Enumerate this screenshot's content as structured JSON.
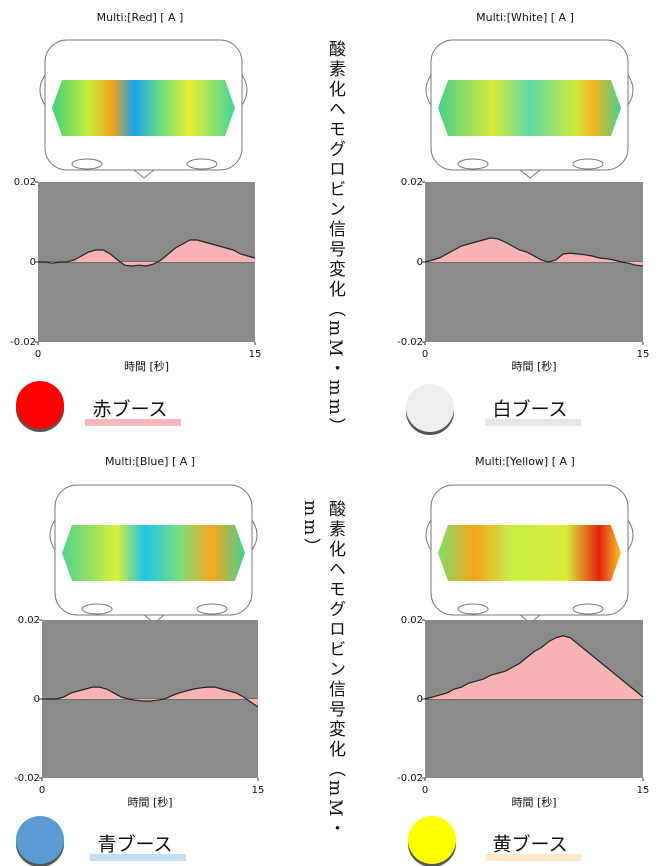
{
  "side_labels": [
    "酸素化ヘモグロビン信号変化（mM・mm）",
    "酸素化ヘモグロビン信号変化（mM・mm）"
  ],
  "chart_data": [
    {
      "type": "area",
      "title": "Multi:[Red] [ A ]",
      "xlabel": "時間 [秒]",
      "caption": "赤ブース",
      "marker_color": "#ff0000",
      "underline_color": "#f6b8bd",
      "color": "#f7b3b3",
      "line_color": "#222222",
      "xlim": [
        0,
        15
      ],
      "xticks": [
        0,
        15
      ],
      "ylim": [
        -0.02,
        0.02
      ],
      "yticks": [
        0.02,
        0,
        -0.02
      ],
      "x": [
        0,
        0.5,
        1,
        1.5,
        2,
        2.5,
        3,
        3.5,
        4,
        4.5,
        5,
        5.5,
        6,
        6.5,
        7,
        7.5,
        8,
        8.5,
        9,
        9.5,
        10,
        10.5,
        11,
        11.5,
        12,
        12.5,
        13,
        13.5,
        14,
        14.5,
        15
      ],
      "values": [
        0,
        0,
        -0.0003,
        0,
        0,
        0.0005,
        0.0015,
        0.0025,
        0.003,
        0.003,
        0.002,
        0.0005,
        -0.0008,
        -0.001,
        -0.0008,
        -0.001,
        -0.0005,
        0.0005,
        0.002,
        0.0035,
        0.0045,
        0.0055,
        0.0055,
        0.005,
        0.0045,
        0.004,
        0.0035,
        0.003,
        0.002,
        0.0015,
        0.001
      ]
    },
    {
      "type": "area",
      "title": "Multi:[White] [ A ]",
      "xlabel": "時間 [秒]",
      "caption": "白ブース",
      "marker_color": "#eeeeee",
      "underline_color": "#e6e6e6",
      "color": "#f7b3b3",
      "line_color": "#222222",
      "xlim": [
        0,
        15
      ],
      "xticks": [
        0,
        15
      ],
      "ylim": [
        -0.02,
        0.02
      ],
      "yticks": [
        0.02,
        0,
        -0.02
      ],
      "x": [
        0,
        0.5,
        1,
        1.5,
        2,
        2.5,
        3,
        3.5,
        4,
        4.5,
        5,
        5.5,
        6,
        6.5,
        7,
        7.5,
        8,
        8.5,
        9,
        9.5,
        10,
        10.5,
        11,
        11.5,
        12,
        12.5,
        13,
        13.5,
        14,
        14.5,
        15
      ],
      "values": [
        0,
        0.0005,
        0.001,
        0.002,
        0.003,
        0.004,
        0.0045,
        0.005,
        0.0055,
        0.006,
        0.0058,
        0.005,
        0.004,
        0.003,
        0.0025,
        0.0015,
        0.0005,
        0,
        0.0005,
        0.002,
        0.0022,
        0.002,
        0.0018,
        0.0015,
        0.001,
        0.0008,
        0.0005,
        0,
        -0.0003,
        -0.0008,
        -0.001
      ]
    },
    {
      "type": "area",
      "title": "Multi:[Blue] [ A ]",
      "xlabel": "時間 [秒]",
      "caption": "青ブース",
      "marker_color": "#5b9bd5",
      "underline_color": "#c5dcef",
      "color": "#f7b3b3",
      "line_color": "#222222",
      "xlim": [
        0,
        15
      ],
      "xticks": [
        0,
        15
      ],
      "ylim": [
        -0.02,
        0.02
      ],
      "yticks": [
        0.02,
        0,
        -0.02
      ],
      "x": [
        0,
        0.5,
        1,
        1.5,
        2,
        2.5,
        3,
        3.5,
        4,
        4.5,
        5,
        5.5,
        6,
        6.5,
        7,
        7.5,
        8,
        8.5,
        9,
        9.5,
        10,
        10.5,
        11,
        11.5,
        12,
        12.5,
        13,
        13.5,
        14,
        14.5,
        15
      ],
      "values": [
        0,
        0,
        0,
        0.0005,
        0.0015,
        0.002,
        0.0025,
        0.003,
        0.003,
        0.0025,
        0.0015,
        0.0005,
        0,
        -0.0003,
        -0.0005,
        -0.0005,
        -0.0003,
        0,
        0.0008,
        0.0015,
        0.002,
        0.0025,
        0.0028,
        0.003,
        0.003,
        0.0025,
        0.002,
        0.0015,
        0.0005,
        -0.0008,
        -0.002
      ]
    },
    {
      "type": "area",
      "title": "Multi:[Yellow] [ A ]",
      "xlabel": "時間 [秒]",
      "caption": "黄ブース",
      "marker_color": "#ffff00",
      "underline_color": "#fde9c8",
      "color": "#f7b3b3",
      "line_color": "#222222",
      "xlim": [
        0,
        15
      ],
      "xticks": [
        0,
        15
      ],
      "ylim": [
        -0.02,
        0.02
      ],
      "yticks": [
        0.02,
        0,
        -0.02
      ],
      "x": [
        0,
        0.5,
        1,
        1.5,
        2,
        2.5,
        3,
        3.5,
        4,
        4.5,
        5,
        5.5,
        6,
        6.5,
        7,
        7.5,
        8,
        8.5,
        9,
        9.5,
        10,
        10.5,
        11,
        11.5,
        12,
        12.5,
        13,
        13.5,
        14,
        14.5,
        15
      ],
      "values": [
        0,
        0.0005,
        0.001,
        0.0015,
        0.0025,
        0.003,
        0.004,
        0.0045,
        0.005,
        0.006,
        0.0065,
        0.007,
        0.008,
        0.009,
        0.0105,
        0.012,
        0.013,
        0.0145,
        0.0155,
        0.016,
        0.0155,
        0.014,
        0.0125,
        0.011,
        0.0095,
        0.008,
        0.0065,
        0.005,
        0.0035,
        0.002,
        0.0005
      ]
    }
  ]
}
